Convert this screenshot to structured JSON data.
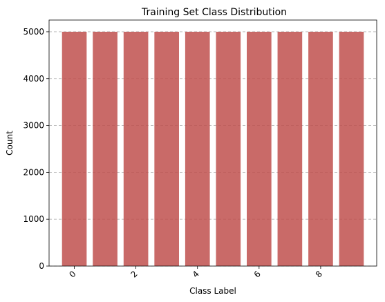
{
  "chart_data": {
    "type": "bar",
    "title": "Training Set Class Distribution",
    "xlabel": "Class Label",
    "ylabel": "Count",
    "categories": [
      "0",
      "1",
      "2",
      "3",
      "4",
      "5",
      "6",
      "7",
      "8",
      "9"
    ],
    "values": [
      5000,
      5000,
      5000,
      5000,
      5000,
      5000,
      5000,
      5000,
      5000,
      5000
    ],
    "xticks": [
      "0",
      "2",
      "4",
      "6",
      "8"
    ],
    "yticks": [
      "0",
      "1000",
      "2000",
      "3000",
      "4000",
      "5000"
    ],
    "ylim": [
      0,
      5250
    ],
    "grid": "y-dashed",
    "bar_color": "#c0504d",
    "bar_opacity": 0.85,
    "grid_color": "#b0b0b0"
  }
}
